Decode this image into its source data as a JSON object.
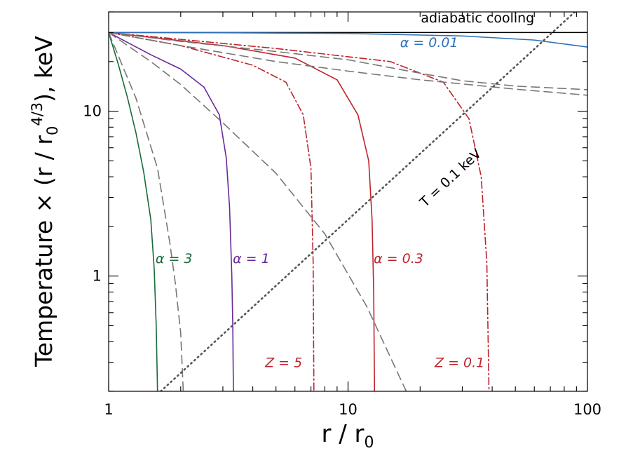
{
  "chart_data": {
    "type": "line",
    "xlabel": "r / r",
    "xlabel_sub": "0",
    "ylabel": "Temperature × (r / r",
    "ylabel_sub": "0",
    "ylabel_sup": "4/3",
    "ylabel_tail": "), keV",
    "x_scale": "log",
    "y_scale": "log",
    "xlim": [
      1,
      100
    ],
    "ylim": [
      0.2,
      40
    ],
    "x_ticks": [
      {
        "value": 1,
        "label": "1"
      },
      {
        "value": 10,
        "label": "10"
      },
      {
        "value": 100,
        "label": "100"
      }
    ],
    "y_ticks": [
      {
        "value": 1,
        "label": "1"
      },
      {
        "value": 10,
        "label": "10"
      }
    ],
    "grid": false,
    "series": [
      {
        "name": "adiabatic cooling",
        "color": "#000000",
        "style": "solid",
        "x": [
          1,
          100
        ],
        "y": [
          30,
          30
        ]
      },
      {
        "name": "α = 0.01",
        "color": "#2a6fb8",
        "style": "solid",
        "x": [
          1,
          3,
          10,
          30,
          60,
          100
        ],
        "y": [
          30,
          29.9,
          29.6,
          28.6,
          27.0,
          24.5
        ]
      },
      {
        "name": "α = 3",
        "color": "#1a6b3c",
        "style": "solid",
        "x": [
          1,
          1.1,
          1.2,
          1.3,
          1.4,
          1.5,
          1.55,
          1.58,
          1.6
        ],
        "y": [
          30,
          19,
          12,
          7.4,
          4.3,
          2.2,
          1.1,
          0.5,
          0.2
        ]
      },
      {
        "name": "α = 1",
        "color": "#6a2a9a",
        "style": "solid",
        "x": [
          1,
          1.5,
          2,
          2.5,
          2.9,
          3.1,
          3.2,
          3.27,
          3.3,
          3.32
        ],
        "y": [
          30,
          22,
          18,
          14,
          9.5,
          5.2,
          2.6,
          1.0,
          0.5,
          0.2
        ]
      },
      {
        "name": "α = 0.3",
        "color": "#c0232c",
        "style": "solid",
        "x": [
          1,
          3,
          6,
          9,
          11,
          12.2,
          12.6,
          12.8,
          12.9
        ],
        "y": [
          30,
          25,
          21,
          15.5,
          9.5,
          5.0,
          2.2,
          0.8,
          0.2
        ]
      },
      {
        "name": "Z = 5",
        "color": "#c0232c",
        "style": "dashdot",
        "x": [
          1,
          2,
          4,
          5.5,
          6.5,
          7.0,
          7.15,
          7.2
        ],
        "y": [
          30,
          25,
          19,
          15,
          9.5,
          4.5,
          1.2,
          0.2
        ]
      },
      {
        "name": "Z = 0.1",
        "color": "#c0232c",
        "style": "dashdot",
        "x": [
          1,
          5,
          15,
          25,
          32,
          36,
          38,
          38.8
        ],
        "y": [
          30,
          24,
          20,
          15,
          9,
          4,
          1.2,
          0.2
        ]
      },
      {
        "name": "",
        "color": "#777777",
        "style": "dashed",
        "x": [
          1,
          1.3,
          1.6,
          1.8,
          1.9,
          2.0,
          2.05
        ],
        "y": [
          30,
          12,
          4.5,
          1.6,
          0.9,
          0.45,
          0.2
        ]
      },
      {
        "name": "",
        "color": "#777777",
        "style": "dashed",
        "x": [
          1,
          1.5,
          2,
          3,
          5,
          8,
          12,
          17.5
        ],
        "y": [
          30,
          20,
          14.5,
          8.5,
          4.2,
          1.8,
          0.65,
          0.2
        ]
      },
      {
        "name": "",
        "color": "#777777",
        "style": "dashed",
        "x": [
          1,
          2,
          5,
          10,
          20,
          50,
          100
        ],
        "y": [
          30,
          25,
          20,
          17.5,
          15.5,
          13.6,
          12.5
        ]
      },
      {
        "name": "",
        "color": "#777777",
        "style": "dashed",
        "x": [
          1,
          2,
          5,
          10,
          20,
          30,
          50,
          100
        ],
        "y": [
          30,
          26.5,
          23,
          20.5,
          17,
          15.3,
          14.2,
          13.5
        ]
      },
      {
        "name": "T = 0.1 keV",
        "color": "#555555",
        "style": "dotted",
        "x": [
          1.65,
          100
        ],
        "y": [
          0.2,
          47
        ]
      }
    ],
    "annotations": [
      {
        "text": "adiabatic cooling",
        "x": 60,
        "y": 34.5,
        "color": "#000000",
        "italic": false,
        "rotate": 0,
        "anchor": "end"
      },
      {
        "text": "α = 0.01",
        "x": 16.5,
        "y": 24.5,
        "color": "#2a6fb8",
        "italic": true,
        "rotate": 0,
        "anchor": "start"
      },
      {
        "text": "α = 3",
        "x": 1.57,
        "y": 1.2,
        "color": "#1a6b3c",
        "italic": true,
        "rotate": 0,
        "anchor": "start"
      },
      {
        "text": "α = 1",
        "x": 3.3,
        "y": 1.2,
        "color": "#6a2a9a",
        "italic": true,
        "rotate": 0,
        "anchor": "start"
      },
      {
        "text": "α = 0.3",
        "x": 12.8,
        "y": 1.2,
        "color": "#c0232c",
        "italic": true,
        "rotate": 0,
        "anchor": "start"
      },
      {
        "text": "Z = 5",
        "x": 4.5,
        "y": 0.28,
        "color": "#c0232c",
        "italic": true,
        "rotate": 0,
        "anchor": "start"
      },
      {
        "text": "Z = 0.1",
        "x": 23,
        "y": 0.28,
        "color": "#c0232c",
        "italic": true,
        "rotate": 0,
        "anchor": "start"
      },
      {
        "text": "T = 0.1 keV",
        "x": 21,
        "y": 2.6,
        "color": "#666666",
        "italic": false,
        "rotate": -43,
        "anchor": "start"
      }
    ]
  }
}
